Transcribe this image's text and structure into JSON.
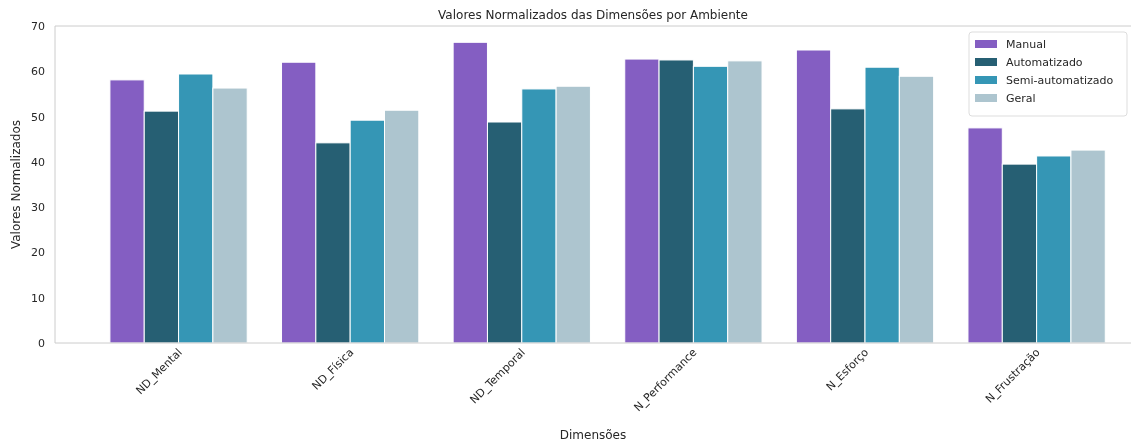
{
  "chart_data": {
    "type": "bar",
    "title": "Valores Normalizados das Dimensões por Ambiente",
    "xlabel": "Dimensões",
    "ylabel": "Valores Normalizados",
    "categories": [
      "ND_Mental",
      "ND_Física",
      "ND_Temporal",
      "N_Performance",
      "N_Esforço",
      "N_Frustração"
    ],
    "series": [
      {
        "name": "Manual",
        "color": "#845ec2",
        "values": [
          58.1,
          62.0,
          66.4,
          62.7,
          64.7,
          47.5
        ]
      },
      {
        "name": "Automatizado",
        "color": "#265f73",
        "values": [
          51.2,
          44.2,
          48.8,
          62.5,
          51.7,
          39.5
        ]
      },
      {
        "name": "Semi-automatizado",
        "color": "#3596b5",
        "values": [
          59.4,
          49.2,
          56.1,
          61.1,
          60.9,
          41.3
        ]
      },
      {
        "name": "Geral",
        "color": "#adc5cf",
        "values": [
          56.3,
          51.4,
          56.7,
          62.3,
          58.9,
          42.6
        ]
      }
    ],
    "ylim": [
      0,
      70
    ],
    "yticks": [
      0,
      10,
      20,
      30,
      40,
      50,
      60,
      70
    ],
    "grid": false,
    "legend": "top right"
  }
}
